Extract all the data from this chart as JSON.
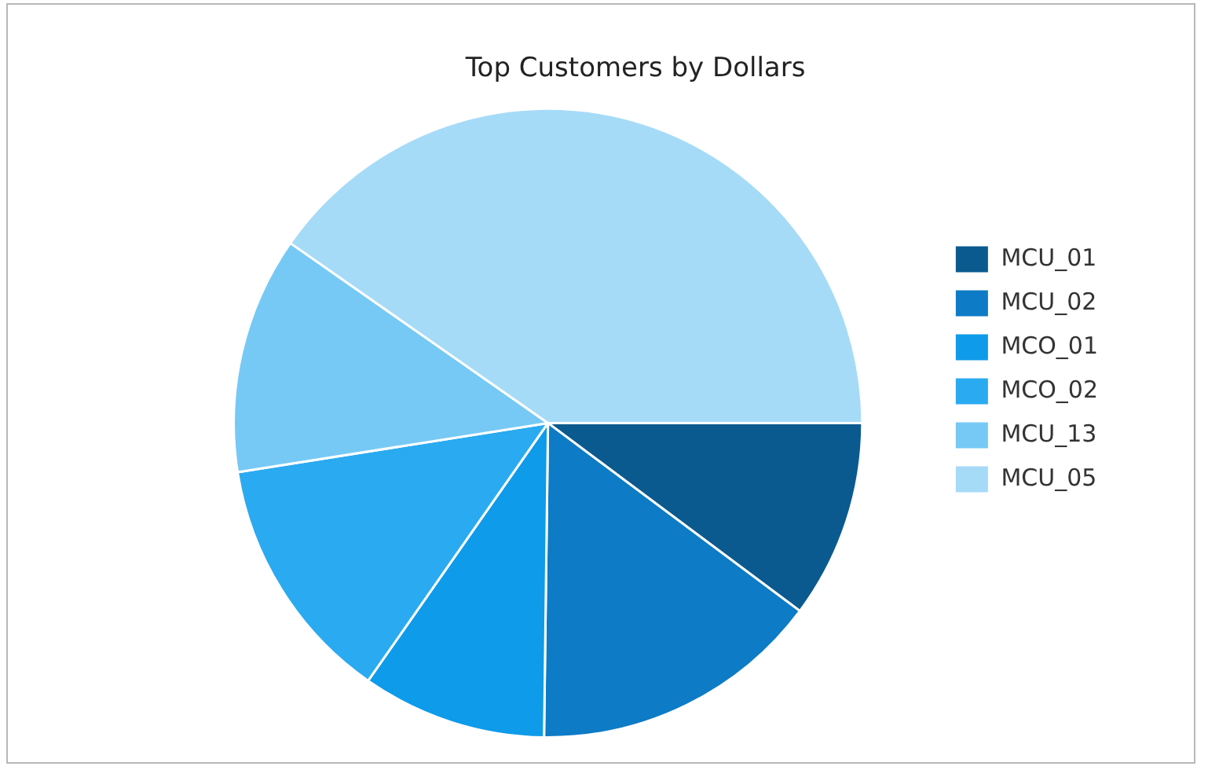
{
  "chart_data": {
    "type": "pie",
    "title": "Top Customers by Dollars",
    "categories": [
      "MCU_01",
      "MCU_02",
      "MCO_01",
      "MCO_02",
      "MCU_13",
      "MCU_05"
    ],
    "values": [
      10.2,
      15,
      9.5,
      12.8,
      12.2,
      40.3
    ],
    "colors": [
      "#0b5a8f",
      "#0d7bc5",
      "#0e9be9",
      "#2aaaf0",
      "#76c9f5",
      "#a6dbf8"
    ],
    "legend": "right"
  }
}
